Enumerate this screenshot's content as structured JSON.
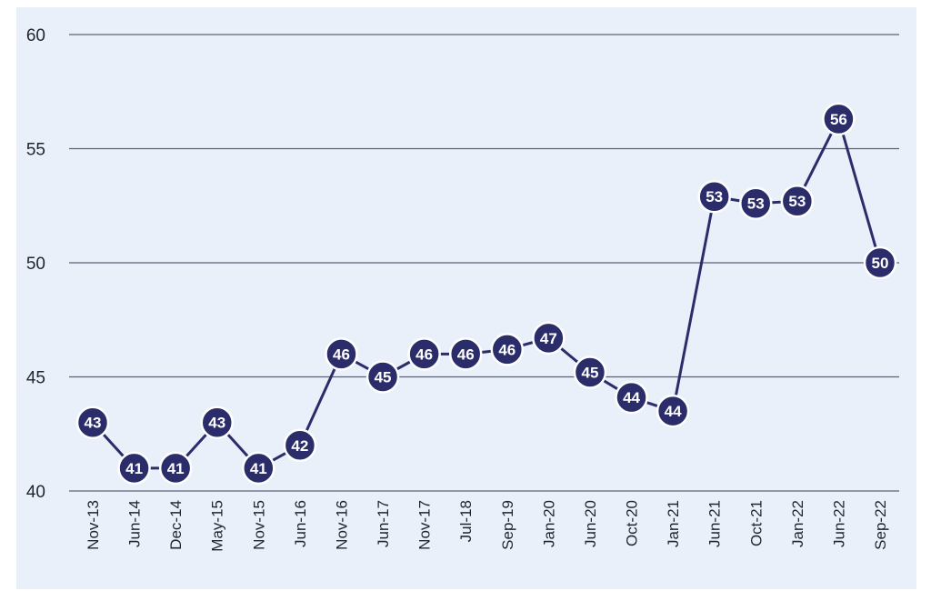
{
  "chart_data": {
    "type": "line",
    "title": "",
    "xlabel": "",
    "ylabel": "",
    "ylim": [
      40,
      60
    ],
    "yticks": [
      "40",
      "45",
      "50",
      "55",
      "60"
    ],
    "grid": true,
    "line_color": "#2b2d6b",
    "background": "#e9f0fa",
    "categories": [
      "Nov-13",
      "Jun-14",
      "Dec-14",
      "May-15",
      "Nov-15",
      "Jun-16",
      "Nov-16",
      "Jun-17",
      "Nov-17",
      "Jul-18",
      "Sep-19",
      "Jan-20",
      "Jun-20",
      "Oct-20",
      "Jan-21",
      "Jun-21",
      "Oct-21",
      "Jan-22",
      "Jun-22",
      "Sep-22"
    ],
    "series": [
      {
        "values": [
          43,
          41,
          41,
          43,
          41,
          42,
          46,
          45,
          46,
          46,
          46.2,
          46.7,
          45.2,
          44.1,
          43.5,
          52.9,
          52.6,
          52.7,
          56.3,
          50
        ],
        "labels": [
          "43",
          "41",
          "41",
          "43",
          "41",
          "42",
          "46",
          "45",
          "46",
          "46",
          "46",
          "47",
          "45",
          "44",
          "44",
          "53",
          "53",
          "53",
          "56",
          "50"
        ]
      }
    ]
  }
}
